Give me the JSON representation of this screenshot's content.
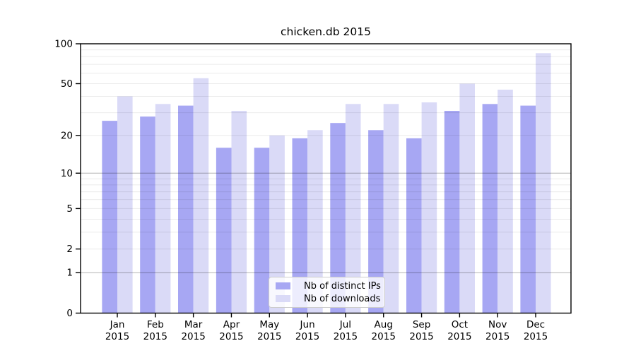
{
  "title": "chicken.db 2015",
  "colors": {
    "ips_bar": "#a7a7f3",
    "downloads_bar": "#dadaf7",
    "axis": "#000000",
    "grid_minor": "rgba(0,0,0,0.08)",
    "grid_major": "rgba(0,0,0,0.30)",
    "legend_border": "#cccccc",
    "text": "#000000"
  },
  "chart_data": {
    "type": "bar",
    "title": "chicken.db 2015",
    "categories": [
      "Jan",
      "Feb",
      "Mar",
      "Apr",
      "May",
      "Jun",
      "Jul",
      "Aug",
      "Sep",
      "Oct",
      "Nov",
      "Dec"
    ],
    "x_year_line": "2015",
    "series": [
      {
        "name": "Nb of distinct IPs",
        "values": [
          26,
          28,
          34,
          16,
          16,
          19,
          25,
          22,
          19,
          31,
          35,
          34
        ]
      },
      {
        "name": "Nb of downloads",
        "values": [
          40,
          35,
          55,
          31,
          20,
          22,
          35,
          35,
          36,
          50,
          45,
          85
        ]
      }
    ],
    "yscale": "log1p",
    "ylim": [
      0,
      100
    ],
    "yticks": [
      100,
      50,
      20,
      10,
      5,
      2,
      1,
      0
    ],
    "minor_gridlines": [
      2,
      3,
      4,
      5,
      6,
      7,
      8,
      9,
      20,
      30,
      40,
      50,
      60,
      70,
      80,
      90
    ],
    "major_gridlines": [
      1,
      10
    ],
    "grid": true,
    "legend_position": "lower center"
  },
  "legend": {
    "items": [
      {
        "label": "Nb of distinct IPs"
      },
      {
        "label": "Nb of downloads"
      }
    ]
  }
}
